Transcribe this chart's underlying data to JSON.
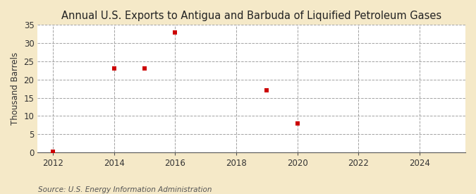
{
  "title": "Annual U.S. Exports to Antigua and Barbuda of Liquified Petroleum Gases",
  "ylabel": "Thousand Barrels",
  "source_text": "Source: U.S. Energy Information Administration",
  "x_data": [
    2012,
    2014,
    2015,
    2016,
    2019,
    2020
  ],
  "y_data": [
    0.1,
    23,
    23,
    33,
    17,
    8
  ],
  "marker_color": "#cc0000",
  "marker": "s",
  "marker_size": 4,
  "xlim": [
    2011.5,
    2025.5
  ],
  "ylim": [
    0,
    35
  ],
  "xticks": [
    2012,
    2014,
    2016,
    2018,
    2020,
    2022,
    2024
  ],
  "yticks": [
    0,
    5,
    10,
    15,
    20,
    25,
    30,
    35
  ],
  "background_color": "#f5e9c8",
  "plot_bg_color": "#ffffff",
  "grid_color": "#999999",
  "title_fontsize": 10.5,
  "label_fontsize": 8.5,
  "tick_fontsize": 8.5,
  "source_fontsize": 7.5
}
